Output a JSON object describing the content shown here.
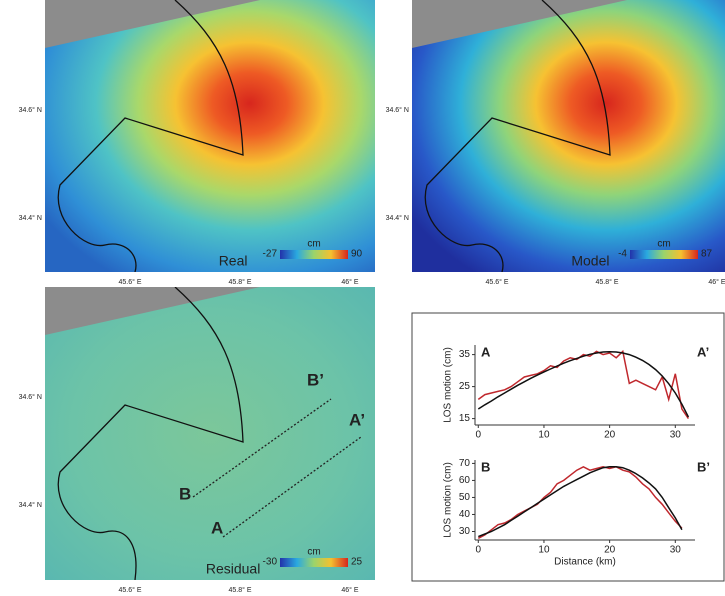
{
  "maps": [
    {
      "label": "Real",
      "colorbar": {
        "unit": "cm",
        "min": -27,
        "max": 90
      },
      "lat_ticks": [
        "34.6° N",
        "34.4° N"
      ],
      "lon_ticks": [
        "45.6° E",
        "45.8° E",
        "46° E"
      ]
    },
    {
      "label": "Model",
      "colorbar": {
        "unit": "cm",
        "min": -4,
        "max": 87
      },
      "lat_ticks": [
        "34.6° N",
        "34.4° N"
      ],
      "lon_ticks": [
        "45.6° E",
        "45.8° E",
        "46° E"
      ]
    },
    {
      "label": "Residual",
      "colorbar": {
        "unit": "cm",
        "min": -30,
        "max": 25
      },
      "lat_ticks": [
        "34.6° N",
        "34.4° N"
      ],
      "lon_ticks": [
        "45.6° E",
        "45.8° E",
        "46° E"
      ],
      "profile_labels": [
        "B’",
        "A’",
        "B",
        "A"
      ]
    }
  ],
  "chart_data": [
    {
      "type": "line",
      "start_label": "A",
      "end_label": "A’",
      "y_label": "LOS motion (cm)",
      "x": [
        0,
        1,
        2,
        3,
        4,
        5,
        6,
        7,
        8,
        9,
        10,
        11,
        12,
        13,
        14,
        15,
        16,
        17,
        18,
        19,
        20,
        21,
        22,
        23,
        24,
        25,
        26,
        27,
        28,
        29,
        30,
        31,
        32
      ],
      "series": [
        {
          "color": "#111111",
          "values": [
            18,
            19.3,
            20.5,
            21.8,
            23,
            24.2,
            25.4,
            26.5,
            27.6,
            28.6,
            29.6,
            30.5,
            31.4,
            32.3,
            33.1,
            33.8,
            34.5,
            35.1,
            35.5,
            35.8,
            35.9,
            35.8,
            35.5,
            35,
            34.2,
            33.2,
            31.9,
            30.3,
            28.3,
            25.9,
            23,
            19.5,
            15.5
          ]
        },
        {
          "color": "#c0282d",
          "values": [
            21,
            22.5,
            23,
            23.5,
            24,
            25,
            26.5,
            28,
            28.5,
            29,
            30,
            31.5,
            31,
            33,
            34,
            33.5,
            35,
            34.5,
            36,
            35,
            35.5,
            34,
            36,
            26,
            27,
            26,
            25,
            24,
            28,
            21,
            29,
            18,
            15
          ]
        }
      ],
      "xlim": [
        -0.5,
        33
      ],
      "ylim": [
        13,
        38
      ],
      "xticks": [
        0,
        10,
        20,
        30
      ],
      "yticks": [
        15,
        25,
        35
      ]
    },
    {
      "type": "line",
      "start_label": "B",
      "end_label": "B’",
      "y_label": "LOS motion (cm)",
      "x_label": "Distance (km)",
      "x": [
        0,
        1,
        2,
        3,
        4,
        5,
        6,
        7,
        8,
        9,
        10,
        11,
        12,
        13,
        14,
        15,
        16,
        17,
        18,
        19,
        20,
        21,
        22,
        23,
        24,
        25,
        26,
        27,
        28,
        29,
        30,
        31
      ],
      "series": [
        {
          "color": "#111111",
          "values": [
            27,
            28.5,
            30,
            32,
            34,
            36.5,
            39,
            41.5,
            44,
            46.5,
            49,
            51.5,
            54,
            56.5,
            58.5,
            60.5,
            62.5,
            64.5,
            66,
            67.5,
            68,
            68,
            67.5,
            66,
            64,
            61.5,
            58.5,
            55,
            50,
            44,
            38,
            31
          ]
        },
        {
          "color": "#c0282d",
          "values": [
            26,
            28,
            31,
            34,
            35,
            37,
            40,
            42,
            44,
            46,
            50,
            53,
            58,
            60,
            63,
            66,
            68,
            66,
            67,
            68,
            67,
            68,
            66,
            65,
            62,
            58,
            55,
            50,
            46,
            41,
            36,
            32
          ]
        }
      ],
      "xlim": [
        -0.5,
        33
      ],
      "ylim": [
        25,
        72
      ],
      "xticks": [
        0,
        10,
        20,
        30
      ],
      "yticks": [
        30,
        40,
        50,
        60,
        70
      ]
    }
  ]
}
